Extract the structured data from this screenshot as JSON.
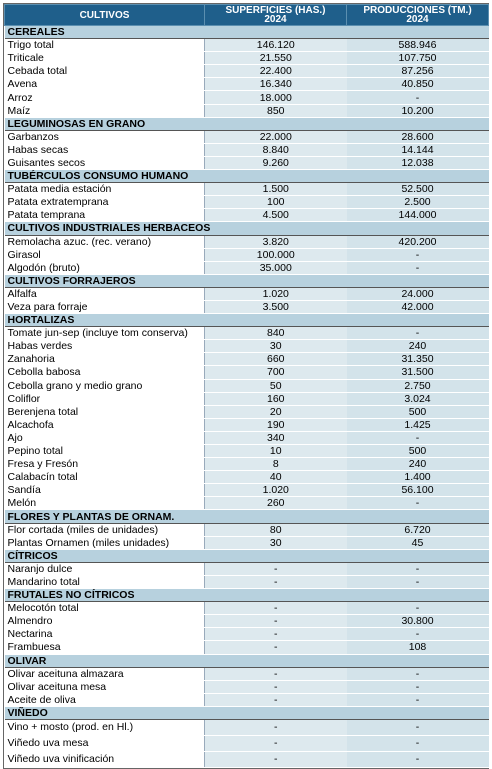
{
  "header": {
    "col1": "CULTIVOS",
    "col2_line1": "SUPERFICIES (HAS.)",
    "col2_line2": "2024",
    "col3_line1": "PRODUCCIONES (TM.)",
    "col3_line2": "2024"
  },
  "sections": [
    {
      "title": "CEREALES",
      "rows": [
        {
          "name": "Trigo total",
          "sup": "146.120",
          "prod": "588.946"
        },
        {
          "name": "Triticale",
          "sup": "21.550",
          "prod": "107.750"
        },
        {
          "name": "Cebada total",
          "sup": "22.400",
          "prod": "87.256"
        },
        {
          "name": "Avena",
          "sup": "16.340",
          "prod": "40.850"
        },
        {
          "name": "Arroz",
          "sup": "18.000",
          "prod": "-"
        },
        {
          "name": "Maíz",
          "sup": "850",
          "prod": "10.200"
        }
      ]
    },
    {
      "title": "LEGUMINOSAS EN GRANO",
      "rows": [
        {
          "name": "Garbanzos",
          "sup": "22.000",
          "prod": "28.600"
        },
        {
          "name": "Habas secas",
          "sup": "8.840",
          "prod": "14.144"
        },
        {
          "name": "Guisantes secos",
          "sup": "9.260",
          "prod": "12.038"
        }
      ]
    },
    {
      "title": "TUBÉRCULOS CONSUMO HUMANO",
      "rows": [
        {
          "name": "Patata media estación",
          "sup": "1.500",
          "prod": "52.500"
        },
        {
          "name": "Patata extratemprana",
          "sup": "100",
          "prod": "2.500"
        },
        {
          "name": "Patata temprana",
          "sup": "4.500",
          "prod": "144.000"
        }
      ]
    },
    {
      "title": "CULTIVOS INDUSTRIALES HERBACEOS",
      "rows": [
        {
          "name": "Remolacha azuc. (rec. verano)",
          "sup": "3.820",
          "prod": "420.200"
        },
        {
          "name": "Girasol",
          "sup": "100.000",
          "prod": "-"
        },
        {
          "name": "Algodón (bruto)",
          "sup": "35.000",
          "prod": "-"
        }
      ]
    },
    {
      "title": "CULTIVOS FORRAJEROS",
      "rows": [
        {
          "name": "Alfalfa",
          "sup": "1.020",
          "prod": "24.000"
        },
        {
          "name": "Veza para forraje",
          "sup": "3.500",
          "prod": "42.000"
        }
      ]
    },
    {
      "title": "HORTALIZAS",
      "rows": [
        {
          "name": "Tomate jun-sep (incluye tom conserva)",
          "sup": "840",
          "prod": "-"
        },
        {
          "name": "Habas verdes",
          "sup": "30",
          "prod": "240"
        },
        {
          "name": "Zanahoria",
          "sup": "660",
          "prod": "31.350"
        },
        {
          "name": "Cebolla babosa",
          "sup": "700",
          "prod": "31.500"
        },
        {
          "name": "Cebolla grano y medio grano",
          "sup": "50",
          "prod": "2.750"
        },
        {
          "name": "Coliflor",
          "sup": "160",
          "prod": "3.024"
        },
        {
          "name": "Berenjena total",
          "sup": "20",
          "prod": "500"
        },
        {
          "name": "Alcachofa",
          "sup": "190",
          "prod": "1.425"
        },
        {
          "name": "Ajo",
          "sup": "340",
          "prod": "-"
        },
        {
          "name": "Pepino total",
          "sup": "10",
          "prod": "500"
        },
        {
          "name": "Fresa y Fresón",
          "sup": "8",
          "prod": "240"
        },
        {
          "name": "Calabacín total",
          "sup": "40",
          "prod": "1.400"
        },
        {
          "name": "Sandía",
          "sup": "1.020",
          "prod": "56.100"
        },
        {
          "name": "Melón",
          "sup": "260",
          "prod": "-"
        }
      ]
    },
    {
      "title": "FLORES Y PLANTAS DE ORNAM.",
      "rows": [
        {
          "name": "Flor cortada (miles de unidades)",
          "sup": "80",
          "prod": "6.720"
        },
        {
          "name": "Plantas Ornamen (miles unidades)",
          "sup": "30",
          "prod": "45"
        }
      ]
    },
    {
      "title": "CÍTRICOS",
      "rows": [
        {
          "name": "Naranjo dulce",
          "sup": "-",
          "prod": "-"
        },
        {
          "name": "Mandarino total",
          "sup": "-",
          "prod": "-"
        }
      ]
    },
    {
      "title": "FRUTALES NO CÍTRICOS",
      "rows": [
        {
          "name": "Melocotón total",
          "sup": "-",
          "prod": "-"
        },
        {
          "name": "Almendro",
          "sup": "-",
          "prod": "30.800"
        },
        {
          "name": "Nectarina",
          "sup": "-",
          "prod": "-"
        },
        {
          "name": "Frambuesa",
          "sup": "-",
          "prod": "108"
        }
      ]
    },
    {
      "title": "OLIVAR",
      "rows": [
        {
          "name": "Olivar aceituna almazara",
          "sup": "-",
          "prod": "-"
        },
        {
          "name": "Olivar aceituna mesa",
          "sup": "-",
          "prod": "-"
        },
        {
          "name": "Aceite de oliva",
          "sup": "-",
          "prod": "-"
        }
      ]
    },
    {
      "title": "VIÑEDO",
      "tall": true,
      "rows": [
        {
          "name": "Vino + mosto (prod. en Hl.)",
          "sup": "-",
          "prod": "-"
        },
        {
          "name": "Viñedo uva mesa",
          "sup": "-",
          "prod": "-"
        },
        {
          "name": "Viñedo uva vinificación",
          "sup": "-",
          "prod": "-"
        }
      ]
    }
  ]
}
